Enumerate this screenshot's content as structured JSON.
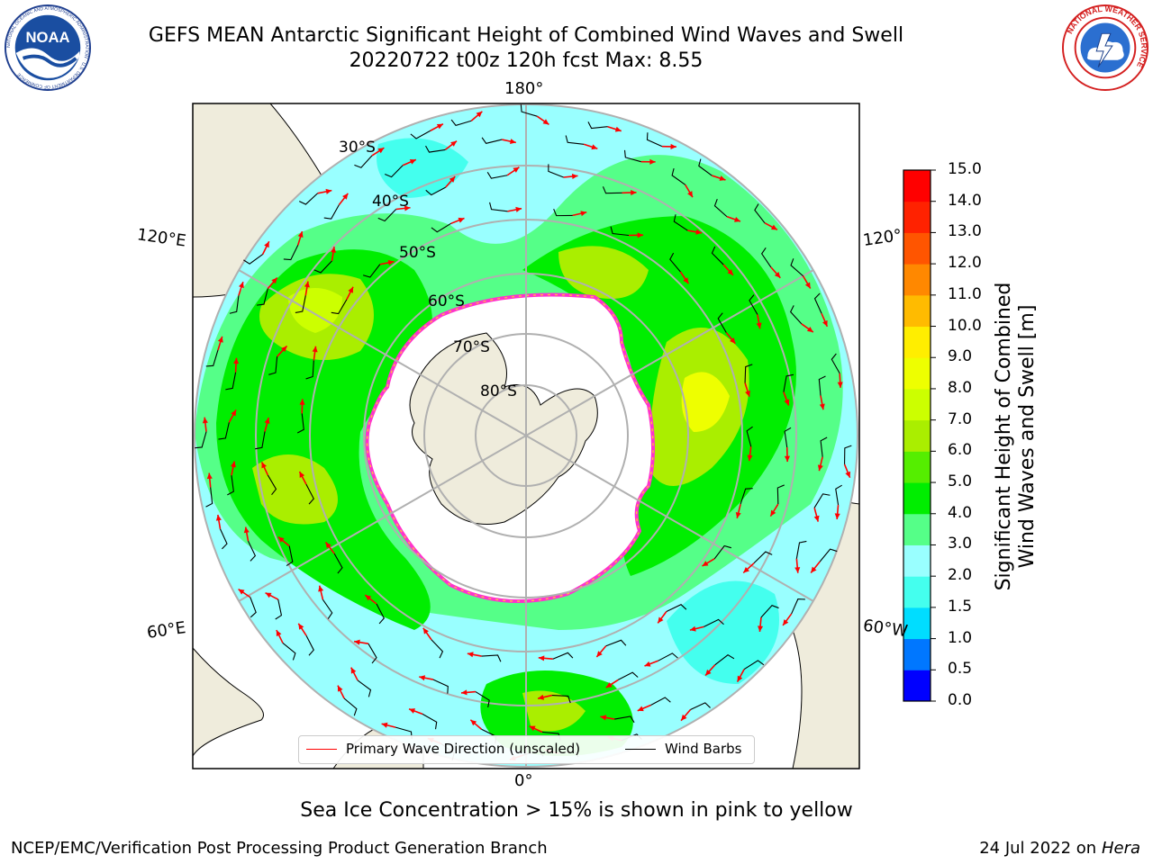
{
  "title": {
    "line1": "GEFS MEAN Antarctic Significant Height of Combined Wind Waves and Swell",
    "line2": "20220722 t00z 120h fcst   Max: 8.55"
  },
  "logos": {
    "noaa": "NOAA",
    "noaa_ring": "NATIONAL OCEANIC AND ATMOSPHERIC ADMINISTRATION · U.S. DEPARTMENT OF COMMERCE",
    "nws_ring": "NATIONAL WEATHER SERVICE"
  },
  "map": {
    "longitude_labels": {
      "top": "180°",
      "bottom": "0°",
      "upper_left": "120°E",
      "lower_left": "60°E",
      "upper_right": "120°",
      "lower_right": "60°W"
    },
    "latitude_labels": [
      "30°S",
      "40°S",
      "50°S",
      "60°S",
      "70°S",
      "80°S"
    ],
    "colors": {
      "land": "#efecdc",
      "ice_core": "#ffffff",
      "ice_edge": "#ff33cc",
      "grid": "#b0b0b0",
      "arrow": "#ff0000",
      "barb": "#000000"
    }
  },
  "legend": {
    "wave_direction": "Primary Wave Direction (unscaled)",
    "wind_barbs": "Wind Barbs"
  },
  "colorbar": {
    "label_line1": "Significant Height of Combined",
    "label_line2": "Wind Waves and Swell [m]",
    "ticks": [
      "0.0",
      "0.5",
      "1.0",
      "1.5",
      "2.0",
      "3.0",
      "4.0",
      "5.0",
      "6.0",
      "7.0",
      "8.0",
      "9.0",
      "10.0",
      "11.0",
      "12.0",
      "13.0",
      "14.0",
      "15.0"
    ],
    "colors": [
      "#0000ff",
      "#0077ff",
      "#00ddff",
      "#44ffee",
      "#99ffff",
      "#55ff88",
      "#00ee00",
      "#55ee00",
      "#aaee00",
      "#ccff00",
      "#eeff00",
      "#ffee00",
      "#ffbb00",
      "#ff8800",
      "#ff5500",
      "#ff2200",
      "#ff0000"
    ]
  },
  "caption": "Sea Ice Concentration > 15% is shown in pink to yellow",
  "footer": {
    "left": "NCEP/EMC/Verification Post Processing Product Generation Branch",
    "right_date": "24 Jul 2022 on ",
    "right_machine": "Hera"
  }
}
